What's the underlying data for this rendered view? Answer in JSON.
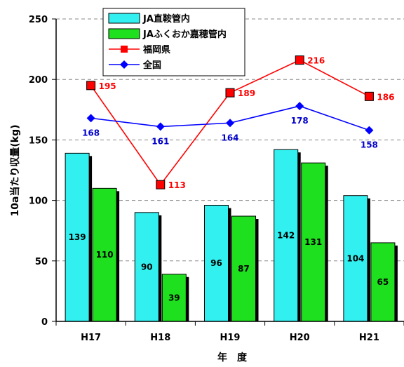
{
  "chart_data": {
    "type": "bar",
    "categories": [
      "H17",
      "H18",
      "H19",
      "H20",
      "H21"
    ],
    "series": [
      {
        "name": "JA直鞍管内",
        "kind": "bar",
        "color": "#33f0f0",
        "values": [
          139,
          90,
          96,
          142,
          104
        ]
      },
      {
        "name": "JAふくおか嘉穂管内",
        "kind": "bar",
        "color": "#1ee01e",
        "values": [
          110,
          39,
          87,
          131,
          65
        ]
      },
      {
        "name": "福岡県",
        "kind": "line",
        "marker": "square",
        "color": "#ff0000",
        "label_color": "#ff0000",
        "values": [
          195,
          113,
          189,
          216,
          186
        ]
      },
      {
        "name": "全国",
        "kind": "line",
        "marker": "diamond",
        "color": "#0000ff",
        "label_color": "#0000cc",
        "values": [
          168,
          161,
          164,
          178,
          158
        ]
      }
    ],
    "ylabel": "10a当たり収量(kg)",
    "xlabel": "年　度",
    "ylim": [
      0,
      250
    ],
    "yticks": [
      0,
      50,
      100,
      150,
      200,
      250
    ],
    "grid": "dashed-horizontal",
    "legend_position": "top-left"
  }
}
